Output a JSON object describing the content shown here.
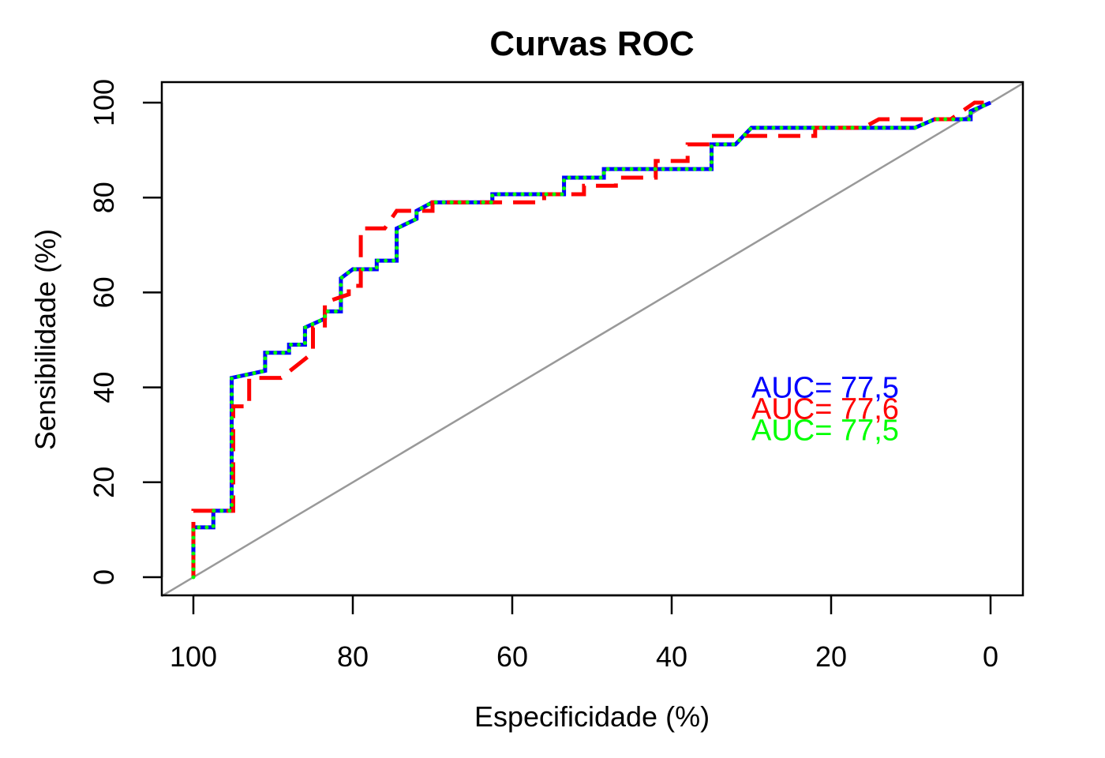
{
  "chart_data": {
    "type": "line",
    "title": "Curvas ROC",
    "xlabel": "Especificidade (%)",
    "ylabel": "Sensibilidade (%)",
    "xlim": [
      100,
      0
    ],
    "ylim": [
      0,
      100
    ],
    "x_reversed": true,
    "grid": false,
    "x_ticks": [
      100,
      80,
      60,
      40,
      20,
      0
    ],
    "y_ticks": [
      0,
      20,
      40,
      60,
      80,
      100
    ],
    "diagonal": {
      "color": "#999999",
      "points": [
        [
          100,
          0
        ],
        [
          0,
          100
        ]
      ]
    },
    "series": [
      {
        "color": "#0000ff",
        "style": "solid",
        "points": [
          [
            100,
            0
          ],
          [
            100,
            10.5
          ],
          [
            97.5,
            10.5
          ],
          [
            97.5,
            14
          ],
          [
            95.2,
            14
          ],
          [
            95.2,
            42
          ],
          [
            91,
            43.5
          ],
          [
            91,
            47.3
          ],
          [
            88,
            47.3
          ],
          [
            88,
            49
          ],
          [
            86,
            49
          ],
          [
            86,
            52.6
          ],
          [
            83.5,
            54.5
          ],
          [
            83.5,
            56
          ],
          [
            81.5,
            56
          ],
          [
            81.5,
            63
          ],
          [
            80,
            64.9
          ],
          [
            77,
            64.9
          ],
          [
            77,
            66.7
          ],
          [
            74.5,
            66.7
          ],
          [
            74.5,
            73.5
          ],
          [
            72,
            75.5
          ],
          [
            72,
            77.2
          ],
          [
            70,
            79
          ],
          [
            62.5,
            79
          ],
          [
            62.5,
            80.7
          ],
          [
            53.5,
            80.7
          ],
          [
            53.5,
            84.2
          ],
          [
            48.5,
            84.2
          ],
          [
            48.5,
            86
          ],
          [
            35,
            86
          ],
          [
            35,
            91.2
          ],
          [
            32,
            91.2
          ],
          [
            30,
            94.7
          ],
          [
            9.5,
            94.7
          ],
          [
            7,
            96.5
          ],
          [
            2.5,
            96.5
          ],
          [
            2.5,
            98.2
          ],
          [
            0,
            100
          ]
        ]
      },
      {
        "color": "#ff0000",
        "style": "dashed",
        "points": [
          [
            100,
            0
          ],
          [
            100,
            14
          ],
          [
            95,
            14
          ],
          [
            95,
            36
          ],
          [
            93,
            36
          ],
          [
            93,
            42
          ],
          [
            89,
            42
          ],
          [
            85,
            47.3
          ],
          [
            85,
            52.6
          ],
          [
            83.5,
            52.6
          ],
          [
            83.5,
            57.9
          ],
          [
            80.5,
            59.6
          ],
          [
            80.5,
            61.4
          ],
          [
            79,
            61.4
          ],
          [
            79,
            73.5
          ],
          [
            76,
            73.5
          ],
          [
            74.5,
            77.2
          ],
          [
            70,
            77.2
          ],
          [
            70,
            79
          ],
          [
            56,
            79
          ],
          [
            56,
            80.7
          ],
          [
            51,
            80.7
          ],
          [
            51,
            82.5
          ],
          [
            47,
            82.5
          ],
          [
            47,
            84.2
          ],
          [
            42,
            84.2
          ],
          [
            42,
            87.7
          ],
          [
            38,
            87.7
          ],
          [
            38,
            91.2
          ],
          [
            35,
            91.2
          ],
          [
            35,
            93
          ],
          [
            22,
            93
          ],
          [
            22,
            94.7
          ],
          [
            16,
            94.7
          ],
          [
            14,
            96.5
          ],
          [
            5,
            96.5
          ],
          [
            2,
            100
          ],
          [
            0,
            100
          ]
        ]
      },
      {
        "color": "#00ff00",
        "style": "dotted",
        "points": [
          [
            100,
            0
          ],
          [
            100,
            10.5
          ],
          [
            97.5,
            10.5
          ],
          [
            97.5,
            14
          ],
          [
            95.2,
            14
          ],
          [
            95.2,
            42
          ],
          [
            91,
            43.5
          ],
          [
            91,
            47.3
          ],
          [
            88,
            47.3
          ],
          [
            88,
            49
          ],
          [
            86,
            49
          ],
          [
            86,
            52.6
          ],
          [
            83.5,
            54.5
          ],
          [
            83.5,
            56
          ],
          [
            81.5,
            56
          ],
          [
            81.5,
            63
          ],
          [
            80,
            64.9
          ],
          [
            77,
            64.9
          ],
          [
            77,
            66.7
          ],
          [
            74.5,
            66.7
          ],
          [
            74.5,
            73.5
          ],
          [
            72,
            75.5
          ],
          [
            72,
            77.2
          ],
          [
            70,
            79
          ],
          [
            62.5,
            79
          ],
          [
            62.5,
            80.7
          ],
          [
            53.5,
            80.7
          ],
          [
            53.5,
            84.2
          ],
          [
            48.5,
            84.2
          ],
          [
            48.5,
            86
          ],
          [
            35,
            86
          ],
          [
            35,
            91.2
          ],
          [
            32,
            91.2
          ],
          [
            30,
            94.7
          ],
          [
            9.5,
            94.7
          ],
          [
            7,
            96.5
          ],
          [
            2.5,
            96.5
          ],
          [
            2.5,
            98.2
          ],
          [
            0,
            100
          ]
        ]
      }
    ],
    "annotations": [
      {
        "text": "AUC= 77,5",
        "color": "#0000ff",
        "x": 30,
        "y": 40
      },
      {
        "text": "AUC= 77,6",
        "color": "#ff0000",
        "x": 30,
        "y": 35.5
      },
      {
        "text": "AUC= 77,5",
        "color": "#00ff00",
        "x": 30,
        "y": 31
      }
    ]
  }
}
